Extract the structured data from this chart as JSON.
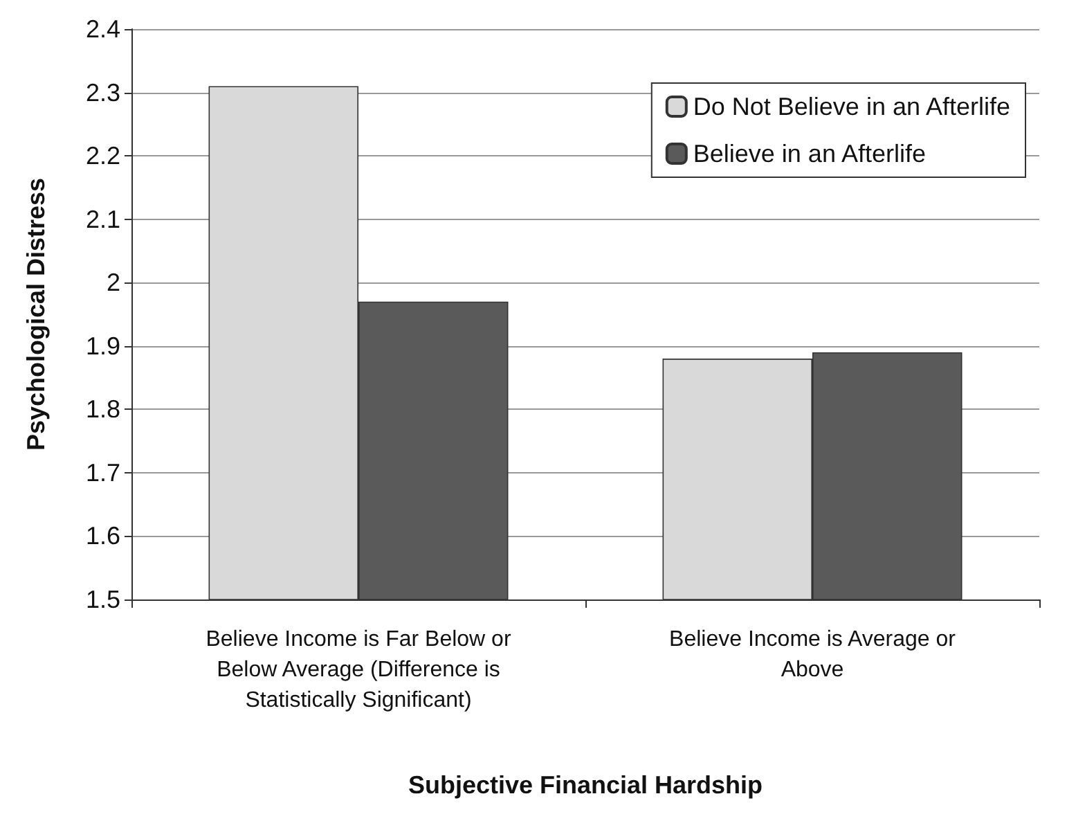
{
  "chart_data": {
    "type": "bar",
    "xlabel": "Subjective Financial Hardship",
    "ylabel": "Psychological Distress",
    "categories": [
      "Believe Income is Far Below or\nBelow Average (Difference is\nStatistically Significant)",
      "Believe Income is Average or\nAbove"
    ],
    "series": [
      {
        "name": "Do Not Believe in an Afterlife",
        "color": "#d9d9d9",
        "values": [
          2.31,
          1.88
        ]
      },
      {
        "name": "Believe in an Afterlife",
        "color": "#5a5a5a",
        "values": [
          1.97,
          1.89
        ]
      }
    ],
    "ylim": [
      1.5,
      2.4
    ],
    "yticks": [
      1.5,
      1.6,
      1.7,
      1.8,
      1.9,
      2,
      2.1,
      2.2,
      2.3,
      2.4
    ],
    "grid": "y",
    "legend": "top right"
  }
}
